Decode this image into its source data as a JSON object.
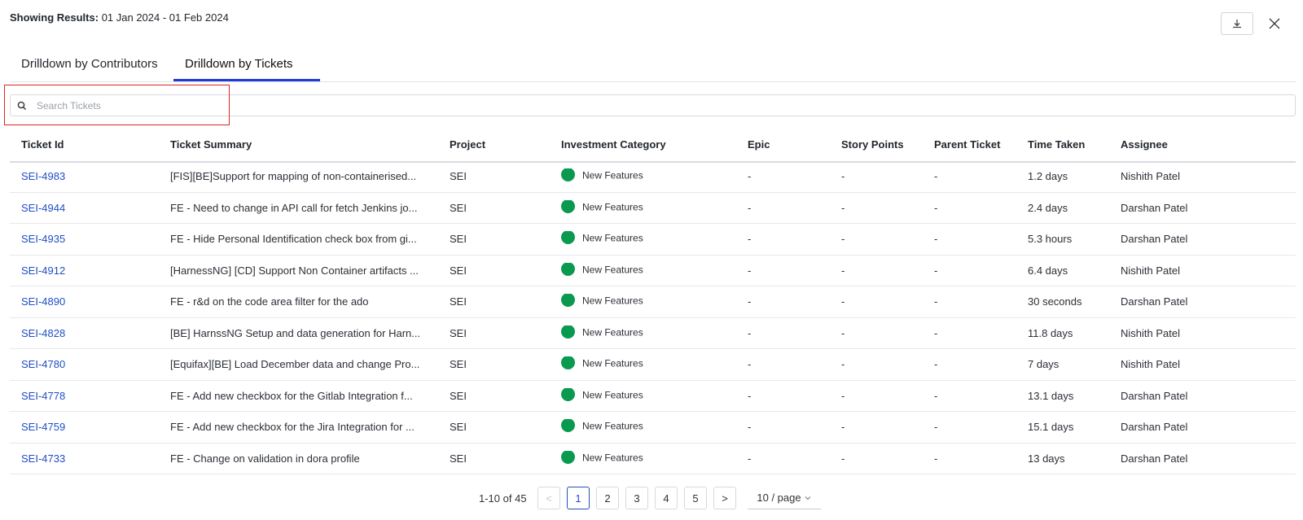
{
  "header": {
    "label": "Showing Results:",
    "date_range": "01 Jan 2024 - 01 Feb 2024"
  },
  "tabs": [
    {
      "label": "Drilldown by Contributors",
      "active": false
    },
    {
      "label": "Drilldown by Tickets",
      "active": true
    }
  ],
  "search": {
    "placeholder": "Search Tickets",
    "value": ""
  },
  "table": {
    "columns": [
      "Ticket Id",
      "Ticket Summary",
      "Project",
      "Investment Category",
      "Epic",
      "Story Points",
      "Parent Ticket",
      "Time Taken",
      "Assignee"
    ],
    "rows": [
      {
        "id": "SEI-4983",
        "summary": "[FIS][BE]Support for mapping of non-containerised...",
        "project": "SEI",
        "category": "New Features",
        "epic": "-",
        "story_points": "-",
        "parent": "-",
        "time": "1.2 days",
        "assignee": "Nishith Patel"
      },
      {
        "id": "SEI-4944",
        "summary": "FE - Need to change in API call for fetch Jenkins jo...",
        "project": "SEI",
        "category": "New Features",
        "epic": "-",
        "story_points": "-",
        "parent": "-",
        "time": "2.4 days",
        "assignee": "Darshan Patel"
      },
      {
        "id": "SEI-4935",
        "summary": "FE - Hide Personal Identification check box from gi...",
        "project": "SEI",
        "category": "New Features",
        "epic": "-",
        "story_points": "-",
        "parent": "-",
        "time": "5.3 hours",
        "assignee": "Darshan Patel"
      },
      {
        "id": "SEI-4912",
        "summary": "[HarnessNG] [CD] Support Non Container artifacts ...",
        "project": "SEI",
        "category": "New Features",
        "epic": "-",
        "story_points": "-",
        "parent": "-",
        "time": "6.4 days",
        "assignee": "Nishith Patel"
      },
      {
        "id": "SEI-4890",
        "summary": "FE - r&d on the code area filter for the ado",
        "project": "SEI",
        "category": "New Features",
        "epic": "-",
        "story_points": "-",
        "parent": "-",
        "time": "30 seconds",
        "assignee": "Darshan Patel"
      },
      {
        "id": "SEI-4828",
        "summary": "[BE] HarnssNG Setup and data generation for Harn...",
        "project": "SEI",
        "category": "New Features",
        "epic": "-",
        "story_points": "-",
        "parent": "-",
        "time": "11.8 days",
        "assignee": "Nishith Patel"
      },
      {
        "id": "SEI-4780",
        "summary": "[Equifax][BE] Load December data and change Pro...",
        "project": "SEI",
        "category": "New Features",
        "epic": "-",
        "story_points": "-",
        "parent": "-",
        "time": "7 days",
        "assignee": "Nishith Patel"
      },
      {
        "id": "SEI-4778",
        "summary": "FE - Add new checkbox for the Gitlab Integration f...",
        "project": "SEI",
        "category": "New Features",
        "epic": "-",
        "story_points": "-",
        "parent": "-",
        "time": "13.1 days",
        "assignee": "Darshan Patel"
      },
      {
        "id": "SEI-4759",
        "summary": "FE - Add new checkbox for the Jira Integration for ...",
        "project": "SEI",
        "category": "New Features",
        "epic": "-",
        "story_points": "-",
        "parent": "-",
        "time": "15.1 days",
        "assignee": "Darshan Patel"
      },
      {
        "id": "SEI-4733",
        "summary": "FE - Change on validation in dora profile",
        "project": "SEI",
        "category": "New Features",
        "epic": "-",
        "story_points": "-",
        "parent": "-",
        "time": "13 days",
        "assignee": "Darshan Patel"
      }
    ]
  },
  "pagination": {
    "range_text": "1-10 of 45",
    "prev": "<",
    "next": ">",
    "pages": [
      "1",
      "2",
      "3",
      "4",
      "5"
    ],
    "current": "1",
    "page_size": "10 / page"
  },
  "colors": {
    "accent": "#1f3bd6",
    "link": "#1f4ec4",
    "category_dot": "#0a9a4f",
    "highlight": "#e02424"
  }
}
